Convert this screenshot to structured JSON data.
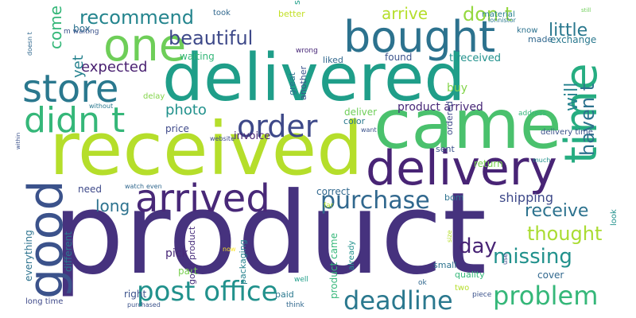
{
  "words": [
    {
      "text": "product",
      "color": "#46327e"
    },
    {
      "text": "received",
      "color": "#b5de2b"
    },
    {
      "text": "delivered",
      "color": "#1f9e89"
    },
    {
      "text": "came",
      "color": "#4ac16d"
    },
    {
      "text": "delivery",
      "color": "#482475"
    },
    {
      "text": "bought",
      "color": "#2c728e"
    },
    {
      "text": "good",
      "color": "#3b528b"
    },
    {
      "text": "one",
      "color": "#6ece58"
    },
    {
      "text": "time",
      "color": "#26ad81"
    },
    {
      "text": "arrived",
      "color": "#482878"
    },
    {
      "text": "store",
      "color": "#2a788e"
    },
    {
      "text": "didn t",
      "color": "#35b779"
    },
    {
      "text": "order",
      "color": "#3e4989"
    },
    {
      "text": "post office",
      "color": "#21918c"
    },
    {
      "text": "deadline",
      "color": "#2a788e"
    },
    {
      "text": "purchase",
      "color": "#31688e"
    },
    {
      "text": "problem",
      "color": "#35b779"
    },
    {
      "text": "recommend",
      "color": "#25858e"
    },
    {
      "text": "s",
      "color": "#1f9e89"
    },
    {
      "text": "beautiful",
      "color": "#3e4989"
    },
    {
      "text": "missing",
      "color": "#21918c"
    },
    {
      "text": "thought",
      "color": "#aadc32"
    },
    {
      "text": "receive",
      "color": "#2c728e"
    },
    {
      "text": "day",
      "color": "#482475"
    },
    {
      "text": "little",
      "color": "#2a788e"
    },
    {
      "text": "haven t",
      "color": "#2c728e"
    },
    {
      "text": "will",
      "color": "#26828e"
    },
    {
      "text": "expected",
      "color": "#481f70"
    },
    {
      "text": "come",
      "color": "#35b779"
    },
    {
      "text": "long",
      "color": "#2c728e"
    },
    {
      "text": "arrive",
      "color": "#b5de2b"
    },
    {
      "text": "don t",
      "color": "#95d840"
    },
    {
      "text": "yet",
      "color": "#26828e"
    },
    {
      "text": "photo",
      "color": "#21918c"
    },
    {
      "text": "product arrived",
      "color": "#482878"
    },
    {
      "text": "shipping",
      "color": "#3e4989"
    },
    {
      "text": "delay",
      "color": "#84d44b"
    },
    {
      "text": "deliver",
      "color": "#6ece58"
    },
    {
      "text": "invoice",
      "color": "#482475"
    },
    {
      "text": "price",
      "color": "#3e4989"
    },
    {
      "text": "waiting",
      "color": "#35b779"
    },
    {
      "text": "found",
      "color": "#3b528b"
    },
    {
      "text": "exchange",
      "color": "#2a788e"
    },
    {
      "text": "made",
      "color": "#31688e"
    },
    {
      "text": "t received",
      "color": "#21918c"
    },
    {
      "text": "liked",
      "color": "#31688e"
    },
    {
      "text": "buy",
      "color": "#84d44b"
    },
    {
      "text": "ordered",
      "color": "#3e4989"
    },
    {
      "text": "color",
      "color": "#2a788e"
    },
    {
      "text": "sent",
      "color": "#3b528b"
    },
    {
      "text": "return",
      "color": "#7ad151"
    },
    {
      "text": "correct",
      "color": "#31688e"
    },
    {
      "text": "different",
      "color": "#2a788e"
    },
    {
      "text": "need",
      "color": "#3e4989"
    },
    {
      "text": "everything",
      "color": "#2c728e"
    },
    {
      "text": "right",
      "color": "#3b528b"
    },
    {
      "text": "pick",
      "color": "#482878"
    },
    {
      "text": "part",
      "color": "#7ad151"
    },
    {
      "text": "good product",
      "color": "#472d7b"
    },
    {
      "text": "packaging",
      "color": "#26828e"
    },
    {
      "text": "product came",
      "color": "#35b779"
    },
    {
      "text": "already",
      "color": "#21918c"
    },
    {
      "text": "small",
      "color": "#2c728e"
    },
    {
      "text": "quality",
      "color": "#35b779"
    },
    {
      "text": "cover",
      "color": "#31688e"
    },
    {
      "text": "paid",
      "color": "#2a788e"
    },
    {
      "text": "two",
      "color": "#b5de2b"
    },
    {
      "text": "another",
      "color": "#3b528b"
    },
    {
      "text": "great",
      "color": "#2c728e"
    },
    {
      "text": "box",
      "color": "#2c728e"
    },
    {
      "text": "better",
      "color": "#c2df23"
    },
    {
      "text": "took",
      "color": "#31688e"
    },
    {
      "text": "material",
      "color": "#26828e"
    },
    {
      "text": "know",
      "color": "#2c728e"
    },
    {
      "text": "m waiting",
      "color": "#3b528b"
    },
    {
      "text": "lonnistor",
      "color": "#2a788e"
    },
    {
      "text": "still",
      "color": "#6ece58"
    },
    {
      "text": "wrong",
      "color": "#482878"
    },
    {
      "text": "doesn t",
      "color": "#31688e"
    },
    {
      "text": "within",
      "color": "#3b528b"
    },
    {
      "text": "without",
      "color": "#2a788e"
    },
    {
      "text": "website",
      "color": "#3e4989"
    },
    {
      "text": "want",
      "color": "#3b528b"
    },
    {
      "text": "address",
      "color": "#35b779"
    },
    {
      "text": "delivery time",
      "color": "#3b528b"
    },
    {
      "text": "much",
      "color": "#21918c"
    },
    {
      "text": "watch",
      "color": "#31688e"
    },
    {
      "text": "even",
      "color": "#31688e"
    },
    {
      "text": "bom",
      "color": "#2c728e"
    },
    {
      "text": "far",
      "color": "#b5de2b"
    },
    {
      "text": "look",
      "color": "#21918c"
    },
    {
      "text": "size",
      "color": "#b5de2b"
    },
    {
      "text": "now",
      "color": "#fde725"
    },
    {
      "text": "well",
      "color": "#1f9e89"
    },
    {
      "text": "ok",
      "color": "#31688e"
    },
    {
      "text": "piece",
      "color": "#3b528b"
    },
    {
      "text": "use",
      "color": "#3e4989"
    },
    {
      "text": "long time",
      "color": "#3e4989"
    },
    {
      "text": "purchased",
      "color": "#3b528b"
    },
    {
      "text": "think",
      "color": "#31688e"
    }
  ]
}
